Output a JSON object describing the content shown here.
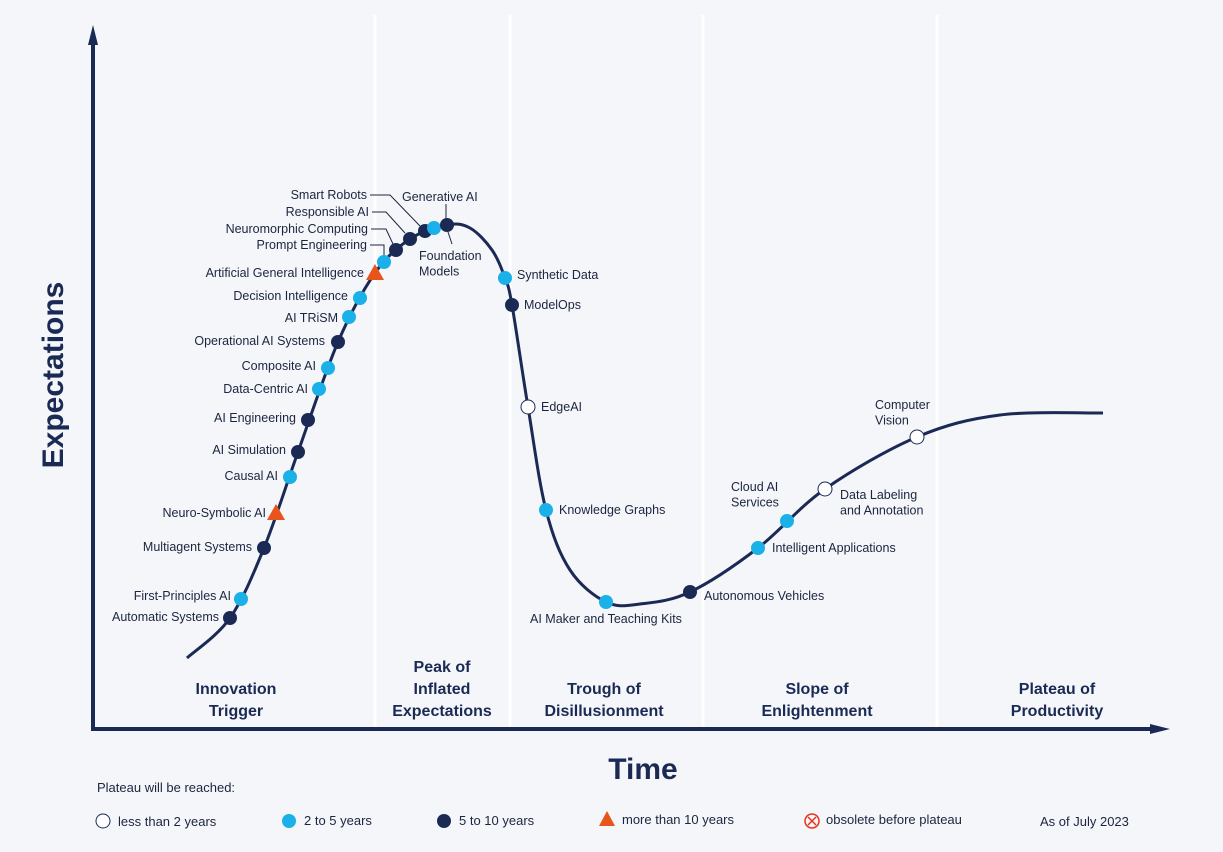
{
  "axes": {
    "y_label": "Expectations",
    "x_label": "Time"
  },
  "colors": {
    "navy": "#1b2a55",
    "less_than_2": "#ffffff",
    "2_to_5": "#1ab0e8",
    "5_to_10": "#1b2a55",
    "more_than_10": "#e8541c",
    "obsolete": "#e8341c"
  },
  "phases": [
    {
      "line1": "Innovation",
      "line2": "Trigger"
    },
    {
      "line0": "Peak of",
      "line1": "Inflated",
      "line2": "Expectations"
    },
    {
      "line1": "Trough of",
      "line2": "Disillusionment"
    },
    {
      "line1": "Slope of",
      "line2": "Enlightenment"
    },
    {
      "line1": "Plateau of",
      "line2": "Productivity"
    }
  ],
  "technologies": [
    {
      "name": "Automatic Systems",
      "category": "5 to 10 years"
    },
    {
      "name": "First-Principles AI",
      "category": "2 to 5 years"
    },
    {
      "name": "Multiagent Systems",
      "category": "5 to 10 years"
    },
    {
      "name": "Neuro-Symbolic AI",
      "category": "more than 10 years"
    },
    {
      "name": "Causal AI",
      "category": "2 to 5 years"
    },
    {
      "name": "AI Simulation",
      "category": "5 to 10 years"
    },
    {
      "name": "AI Engineering",
      "category": "5 to 10 years"
    },
    {
      "name": "Data-Centric AI",
      "category": "2 to 5 years"
    },
    {
      "name": "Composite AI",
      "category": "2 to 5 years"
    },
    {
      "name": "Operational AI Systems",
      "category": "5 to 10 years"
    },
    {
      "name": "AI TRiSM",
      "category": "2 to 5 years"
    },
    {
      "name": "Decision Intelligence",
      "category": "2 to 5 years"
    },
    {
      "name": "Artificial General Intelligence",
      "category": "more than 10 years"
    },
    {
      "name": "Prompt Engineering",
      "category": "2 to 5 years"
    },
    {
      "name": "Neuromorphic Computing",
      "category": "5 to 10 years"
    },
    {
      "name": "Responsible AI",
      "category": "5 to 10 years"
    },
    {
      "name": "Smart Robots",
      "category": "5 to 10 years"
    },
    {
      "name": "Generative AI",
      "category": "2 to 5 years"
    },
    {
      "name": "Foundation Models",
      "category": "5 to 10 years"
    },
    {
      "name": "Synthetic Data",
      "category": "2 to 5 years"
    },
    {
      "name": "ModelOps",
      "category": "5 to 10 years"
    },
    {
      "name": "EdgeAI",
      "category": "less than 2 years"
    },
    {
      "name": "Knowledge Graphs",
      "category": "2 to 5 years"
    },
    {
      "name": "AI Maker and Teaching Kits",
      "category": "2 to 5 years"
    },
    {
      "name": "Autonomous Vehicles",
      "category": "5 to 10 years"
    },
    {
      "name": "Intelligent Applications",
      "category": "2 to 5 years"
    },
    {
      "name": "Cloud AI Services",
      "category": "2 to 5 years"
    },
    {
      "name": "Data Labeling and Annotation",
      "category": "less than 2 years"
    },
    {
      "name": "Computer Vision",
      "category": "less than 2 years"
    }
  ],
  "legend": {
    "title": "Plateau will be reached:",
    "items": [
      {
        "label": "less than 2 years",
        "shape": "circle-white"
      },
      {
        "label": "2 to 5 years",
        "shape": "circle-light-blue"
      },
      {
        "label": "5 to 10 years",
        "shape": "circle-navy"
      },
      {
        "label": "more than 10 years",
        "shape": "triangle-orange"
      },
      {
        "label": "obsolete before plateau",
        "shape": "circle-x-red"
      }
    ],
    "as_of": "As of July 2023"
  }
}
